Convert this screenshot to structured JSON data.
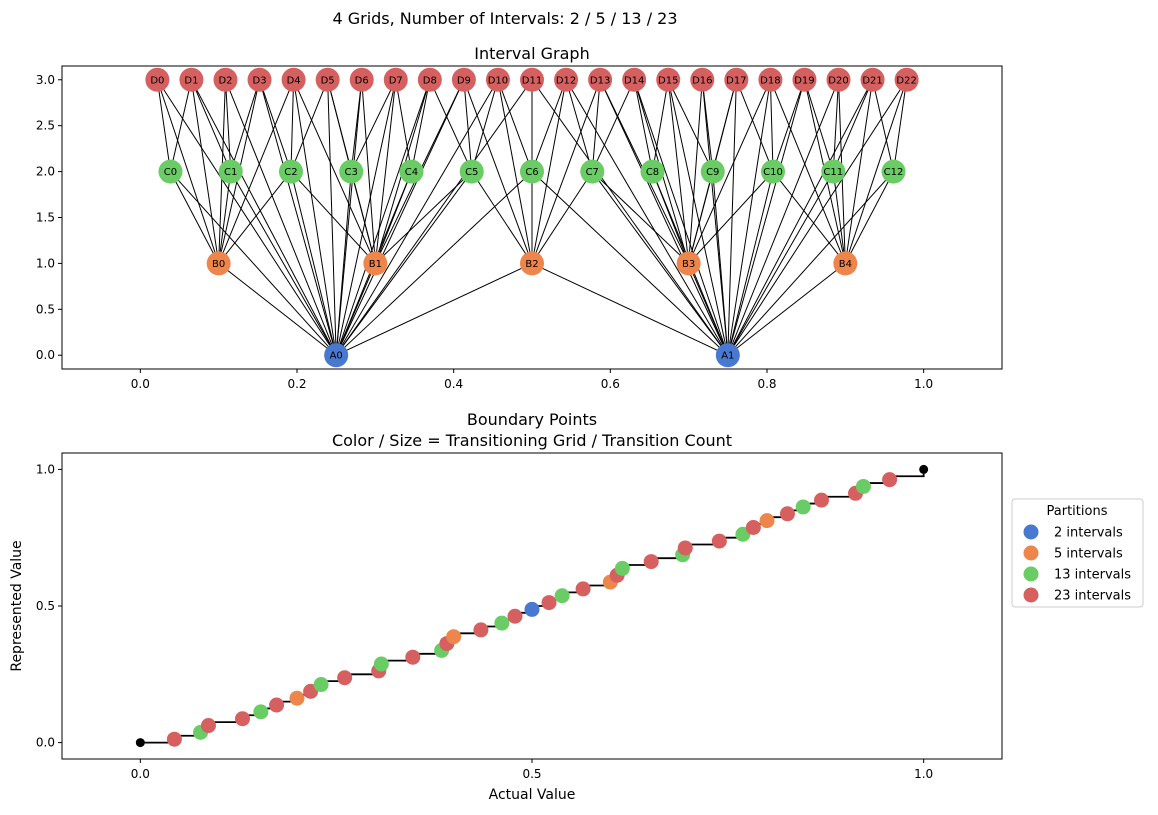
{
  "suptitle": "4 Grids, Number of Intervals: 2 / 5 / 13 / 23",
  "chart_data": [
    {
      "type": "network",
      "title": "Interval Graph",
      "xlim": [
        -0.1,
        1.1
      ],
      "ylim": [
        -0.15,
        3.15
      ],
      "xticks": [
        "0.0",
        "0.2",
        "0.4",
        "0.6",
        "0.8",
        "1.0"
      ],
      "yticks": [
        "0.0",
        "0.5",
        "1.0",
        "1.5",
        "2.0",
        "2.5",
        "3.0"
      ],
      "levels": [
        {
          "prefix": "A",
          "y": 0,
          "intervals": 2,
          "color": "#4878cf"
        },
        {
          "prefix": "B",
          "y": 1,
          "intervals": 5,
          "color": "#ee854a"
        },
        {
          "prefix": "C",
          "y": 2,
          "intervals": 13,
          "color": "#6acc64"
        },
        {
          "prefix": "D",
          "y": 3,
          "intervals": 23,
          "color": "#d65f5f"
        }
      ],
      "node_labels": {
        "A": [
          "A0",
          "A1"
        ],
        "B": [
          "B0",
          "B1",
          "B2",
          "B3",
          "B4"
        ],
        "C": [
          "C0",
          "C1",
          "C2",
          "C3",
          "C4",
          "C5",
          "C6",
          "C7",
          "C8",
          "C9",
          "C10",
          "C11",
          "C12"
        ],
        "D": [
          "D0",
          "D1",
          "D2",
          "D3",
          "D4",
          "D5",
          "D6",
          "D7",
          "D8",
          "D9",
          "D10",
          "D11",
          "D12",
          "D13",
          "D14",
          "D15",
          "D16",
          "D17",
          "D18",
          "D19",
          "D20",
          "D21",
          "D22"
        ]
      },
      "edges": "each node is connected to every node of every other level whose interval overlaps it"
    },
    {
      "type": "scatter",
      "title": "Boundary Points",
      "subtitle": "Color / Size = Transitioning Grid / Transition Count",
      "xlabel": "Actual Value",
      "ylabel": "Represented Value",
      "xlim": [
        -0.1,
        1.1
      ],
      "ylim": [
        -0.06,
        1.06
      ],
      "xticks": [
        "0.0",
        "0.5",
        "1.0"
      ],
      "yticks": [
        "0.0",
        "0.5",
        "1.0"
      ],
      "legend_title": "Partitions",
      "legend_position": "center-right outside",
      "endpoints": [
        [
          0,
          0
        ],
        [
          1,
          1
        ]
      ],
      "series": [
        {
          "name": "2 intervals",
          "color": "#4878cf",
          "intervals": 2
        },
        {
          "name": "5 intervals",
          "color": "#ee854a",
          "intervals": 5
        },
        {
          "name": "13 intervals",
          "color": "#6acc64",
          "intervals": 13
        },
        {
          "name": "23 intervals",
          "color": "#d65f5f",
          "intervals": 23
        }
      ]
    }
  ]
}
